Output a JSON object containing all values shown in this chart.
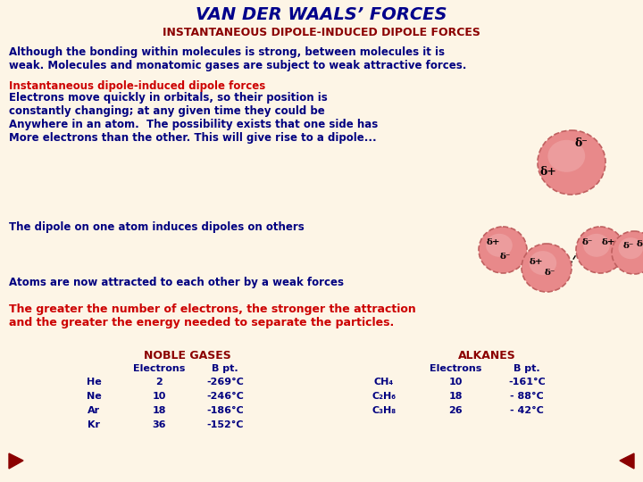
{
  "bg_color": "#fdf5e6",
  "title": "VAN DER WAALS’ FORCES",
  "title_color": "#00008B",
  "subtitle": "INSTANTANEOUS DIPOLE-INDUCED DIPOLE FORCES",
  "subtitle_color": "#8B0000",
  "body_color": "#000080",
  "red_color": "#CC0000",
  "atom_color": "#e8898a",
  "atom_edge": "#c06060",
  "nav_color": "#8B0000",
  "text_blocks": [
    {
      "text": "Although the bonding within molecules is strong, between molecules it is\nweak. Molecules and monatomic gases are subject to weak attractive forces.",
      "color": "#000080"
    },
    {
      "text": "Instantaneous dipole-induced dipole forces",
      "color": "#CC0000"
    },
    {
      "text": "Electrons move quickly in orbitals, so their position is\nconstantly changing; at any given time they could be\nAnywhere in an atom.  The possibility exists that one side has\nMore electrons than the other. This will give rise to a dipole...",
      "color": "#000080"
    },
    {
      "text": "The dipole on one atom induces dipoles on others",
      "color": "#000080"
    },
    {
      "text": "Atoms are now attracted to each other by a weak forces",
      "color": "#000080"
    },
    {
      "text": "The greater the number of electrons, the stronger the attraction\nand the greater the energy needed to separate the particles.",
      "color": "#CC0000"
    }
  ],
  "noble_gases_title": "NOBLE GASES",
  "noble_gases_rows": [
    [
      "He",
      "2",
      "-269°C"
    ],
    [
      "Ne",
      "10",
      "-246°C"
    ],
    [
      "Ar",
      "18",
      "-186°C"
    ],
    [
      "Kr",
      "36",
      "-152°C"
    ]
  ],
  "alkanes_title": "ALKANES",
  "alkanes_rows": [
    [
      "CH₄",
      "10",
      "-161°C"
    ],
    [
      "C₂H₆",
      "18",
      "- 88°C"
    ],
    [
      "C₃H₈",
      "26",
      "- 42°C"
    ]
  ]
}
